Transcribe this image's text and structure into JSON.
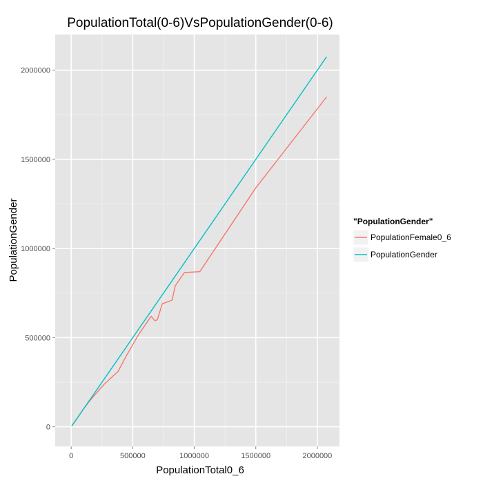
{
  "chart_data": {
    "type": "line",
    "title": "PopulationTotal(0-6)VsPopulationGender(0-6)",
    "xlabel": "PopulationTotal0_6",
    "ylabel": "PopulationGender",
    "xlim": [
      -130000,
      2180000
    ],
    "ylim": [
      -110000,
      2200000
    ],
    "x_ticks": [
      0,
      500000,
      1000000,
      1500000,
      2000000
    ],
    "x_tick_labels": [
      "0",
      "500000",
      "1000000",
      "1500000",
      "2000000"
    ],
    "y_ticks": [
      0,
      500000,
      1000000,
      1500000,
      2000000
    ],
    "y_tick_labels": [
      "0",
      "500000",
      "1000000",
      "1500000",
      "2000000"
    ],
    "grid": true,
    "legend": {
      "title": "\"PopulationGender\"",
      "placement": "right"
    },
    "series": [
      {
        "name": "PopulationFemale0_6",
        "color": "#F8766D",
        "x": [
          5000,
          30000,
          60000,
          100000,
          150000,
          270000,
          380000,
          450000,
          550000,
          650000,
          680000,
          700000,
          740000,
          820000,
          845000,
          920000,
          1045000,
          1500000,
          2075000
        ],
        "y": [
          5000,
          30000,
          60000,
          100000,
          145000,
          240000,
          310000,
          400000,
          520000,
          620000,
          595000,
          600000,
          690000,
          710000,
          790000,
          865000,
          870000,
          1340000,
          1850000
        ]
      },
      {
        "name": "PopulationGender",
        "color": "#00BFC4",
        "x": [
          5000,
          2075000
        ],
        "y": [
          5000,
          2075000
        ]
      }
    ]
  }
}
